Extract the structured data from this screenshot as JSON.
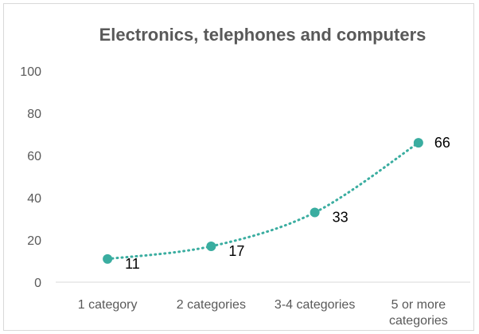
{
  "chart_data": {
    "type": "line",
    "title": "Electronics, telephones and computers",
    "categories": [
      "1 category",
      "2 categories",
      "3-4 categories",
      "5 or more categories"
    ],
    "category_label_lines": [
      [
        "1 category"
      ],
      [
        "2 categories"
      ],
      [
        "3-4 categories"
      ],
      [
        "5 or more",
        "categories"
      ]
    ],
    "series": [
      {
        "values": [
          11,
          17,
          33,
          66
        ],
        "data_labels": [
          "11",
          "17",
          "33",
          "66"
        ]
      }
    ],
    "ylim": [
      0,
      100
    ],
    "yticks": [
      0,
      20,
      40,
      60,
      80,
      100
    ],
    "ytick_labels": [
      "0",
      "20",
      "40",
      "60",
      "80",
      "100"
    ],
    "xlabel": "",
    "ylabel": "",
    "grid": false,
    "legend": "none",
    "trendline": "dotted polynomial",
    "colors": {
      "series": "#3aada0",
      "axis": "#d9d9d9",
      "text": "#595959"
    }
  }
}
